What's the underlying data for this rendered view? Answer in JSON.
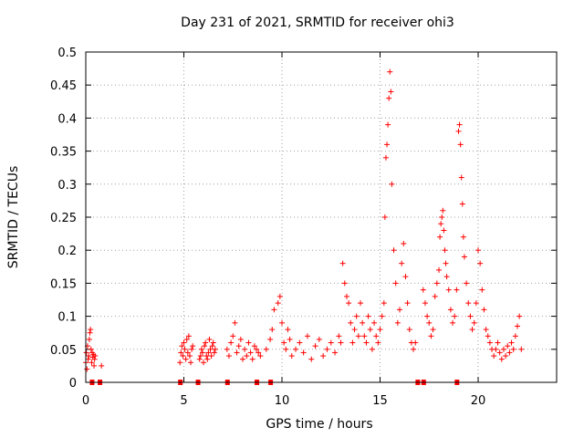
{
  "chart_data": {
    "type": "scatter",
    "title": "Day 231 of 2021, SRMTID for receiver ohi3",
    "xlabel": "GPS time / hours",
    "ylabel": "SRMTID / TECUs",
    "xlim": [
      0,
      24
    ],
    "ylim": [
      0,
      0.5
    ],
    "x_ticks": [
      0,
      5,
      10,
      15,
      20
    ],
    "x_tick_labels": [
      "0",
      "5",
      "10",
      "15",
      "20"
    ],
    "y_ticks": [
      0,
      0.05,
      0.1,
      0.15,
      0.2,
      0.25,
      0.3,
      0.35,
      0.4,
      0.45,
      0.5
    ],
    "y_tick_labels": [
      "0",
      "0.05",
      "0.1",
      "0.15",
      "0.2",
      "0.25",
      "0.3",
      "0.35",
      "0.4",
      "0.45",
      "0.5"
    ],
    "grid": true,
    "marker": "+",
    "color": "#ff0000",
    "series": [
      {
        "name": "SRMTID",
        "x": [
          0.0,
          0.03,
          0.06,
          0.09,
          0.12,
          0.15,
          0.18,
          0.21,
          0.24,
          0.27,
          0.3,
          0.33,
          0.36,
          0.39,
          0.42,
          0.45,
          0.48,
          0.8,
          4.8,
          4.85,
          4.9,
          4.95,
          5.0,
          5.05,
          5.1,
          5.15,
          5.2,
          5.25,
          5.3,
          5.35,
          5.4,
          5.45,
          5.8,
          5.85,
          5.9,
          5.95,
          6.0,
          6.05,
          6.1,
          6.15,
          6.2,
          6.25,
          6.3,
          6.35,
          6.4,
          6.45,
          6.5,
          6.55,
          6.6,
          7.2,
          7.3,
          7.4,
          7.5,
          7.6,
          7.7,
          7.8,
          7.9,
          8.0,
          8.1,
          8.2,
          8.3,
          8.4,
          8.5,
          8.6,
          8.7,
          8.8,
          8.9,
          9.2,
          9.4,
          9.5,
          9.6,
          9.8,
          9.9,
          10.0,
          10.1,
          10.2,
          10.3,
          10.4,
          10.5,
          10.7,
          10.9,
          11.1,
          11.3,
          11.5,
          11.7,
          11.9,
          12.1,
          12.3,
          12.5,
          12.7,
          12.9,
          13.0,
          13.1,
          13.2,
          13.3,
          13.4,
          13.5,
          13.6,
          13.7,
          13.8,
          13.9,
          14.0,
          14.1,
          14.2,
          14.3,
          14.4,
          14.5,
          14.6,
          14.7,
          14.8,
          14.9,
          15.0,
          15.1,
          15.2,
          15.25,
          15.3,
          15.35,
          15.4,
          15.45,
          15.5,
          15.55,
          15.6,
          15.7,
          15.8,
          15.9,
          16.0,
          16.1,
          16.2,
          16.3,
          16.4,
          16.5,
          16.6,
          16.7,
          16.8,
          17.2,
          17.3,
          17.4,
          17.5,
          17.6,
          17.7,
          17.8,
          17.9,
          18.0,
          18.05,
          18.1,
          18.15,
          18.2,
          18.25,
          18.3,
          18.35,
          18.4,
          18.5,
          18.6,
          18.7,
          18.8,
          18.9,
          19.0,
          19.05,
          19.1,
          19.15,
          19.2,
          19.25,
          19.3,
          19.4,
          19.5,
          19.6,
          19.7,
          19.8,
          19.9,
          20.0,
          20.1,
          20.2,
          20.3,
          20.4,
          20.5,
          20.6,
          20.7,
          20.8,
          20.9,
          21.0,
          21.1,
          21.2,
          21.3,
          21.4,
          21.5,
          21.6,
          21.7,
          21.8,
          21.9,
          22.0,
          22.1,
          22.2
        ],
        "y": [
          0.03,
          0.045,
          0.02,
          0.055,
          0.035,
          0.04,
          0.065,
          0.075,
          0.08,
          0.05,
          0.03,
          0.045,
          0.038,
          0.042,
          0.025,
          0.035,
          0.04,
          0.025,
          0.03,
          0.045,
          0.055,
          0.04,
          0.06,
          0.05,
          0.035,
          0.065,
          0.045,
          0.07,
          0.04,
          0.03,
          0.05,
          0.055,
          0.035,
          0.04,
          0.05,
          0.045,
          0.03,
          0.055,
          0.06,
          0.04,
          0.035,
          0.045,
          0.065,
          0.05,
          0.04,
          0.055,
          0.06,
          0.045,
          0.05,
          0.05,
          0.04,
          0.06,
          0.07,
          0.09,
          0.045,
          0.055,
          0.065,
          0.035,
          0.05,
          0.04,
          0.06,
          0.045,
          0.035,
          0.055,
          0.05,
          0.045,
          0.04,
          0.05,
          0.065,
          0.08,
          0.11,
          0.12,
          0.13,
          0.09,
          0.06,
          0.05,
          0.08,
          0.065,
          0.04,
          0.05,
          0.06,
          0.045,
          0.07,
          0.035,
          0.055,
          0.065,
          0.04,
          0.05,
          0.06,
          0.045,
          0.07,
          0.06,
          0.18,
          0.15,
          0.13,
          0.12,
          0.09,
          0.06,
          0.08,
          0.1,
          0.07,
          0.12,
          0.09,
          0.07,
          0.06,
          0.1,
          0.08,
          0.05,
          0.09,
          0.07,
          0.06,
          0.08,
          0.1,
          0.12,
          0.25,
          0.34,
          0.36,
          0.39,
          0.43,
          0.47,
          0.44,
          0.3,
          0.2,
          0.15,
          0.09,
          0.11,
          0.18,
          0.21,
          0.16,
          0.12,
          0.08,
          0.06,
          0.05,
          0.06,
          0.14,
          0.12,
          0.1,
          0.09,
          0.07,
          0.08,
          0.13,
          0.15,
          0.17,
          0.22,
          0.24,
          0.25,
          0.26,
          0.23,
          0.2,
          0.18,
          0.16,
          0.14,
          0.11,
          0.09,
          0.1,
          0.14,
          0.38,
          0.39,
          0.36,
          0.31,
          0.27,
          0.22,
          0.19,
          0.15,
          0.12,
          0.1,
          0.08,
          0.09,
          0.12,
          0.2,
          0.18,
          0.14,
          0.11,
          0.08,
          0.07,
          0.06,
          0.05,
          0.04,
          0.05,
          0.06,
          0.045,
          0.035,
          0.05,
          0.04,
          0.055,
          0.045,
          0.06,
          0.05,
          0.07,
          0.085,
          0.1,
          0.05
        ],
        "gaps_on_axis_x": [
          0.3,
          0.7,
          4.8,
          5.7,
          7.2,
          8.7,
          9.4,
          16.9,
          17.2,
          18.9
        ]
      }
    ]
  }
}
